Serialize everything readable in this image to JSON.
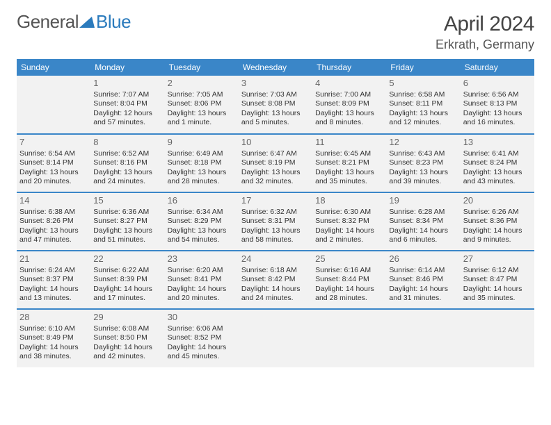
{
  "brand": {
    "part1": "General",
    "part2": "Blue"
  },
  "title": "April 2024",
  "subtitle": "Erkrath, Germany",
  "colors": {
    "headerBg": "#3a86c8",
    "rowBorder": "#3a86c8",
    "cellBg": "#f2f2f2",
    "titleColor": "#444"
  },
  "dayNames": [
    "Sunday",
    "Monday",
    "Tuesday",
    "Wednesday",
    "Thursday",
    "Friday",
    "Saturday"
  ],
  "weeks": [
    [
      null,
      {
        "n": "1",
        "sr": "7:07 AM",
        "ss": "8:04 PM",
        "dl": "12 hours and 57 minutes."
      },
      {
        "n": "2",
        "sr": "7:05 AM",
        "ss": "8:06 PM",
        "dl": "13 hours and 1 minute."
      },
      {
        "n": "3",
        "sr": "7:03 AM",
        "ss": "8:08 PM",
        "dl": "13 hours and 5 minutes."
      },
      {
        "n": "4",
        "sr": "7:00 AM",
        "ss": "8:09 PM",
        "dl": "13 hours and 8 minutes."
      },
      {
        "n": "5",
        "sr": "6:58 AM",
        "ss": "8:11 PM",
        "dl": "13 hours and 12 minutes."
      },
      {
        "n": "6",
        "sr": "6:56 AM",
        "ss": "8:13 PM",
        "dl": "13 hours and 16 minutes."
      }
    ],
    [
      {
        "n": "7",
        "sr": "6:54 AM",
        "ss": "8:14 PM",
        "dl": "13 hours and 20 minutes."
      },
      {
        "n": "8",
        "sr": "6:52 AM",
        "ss": "8:16 PM",
        "dl": "13 hours and 24 minutes."
      },
      {
        "n": "9",
        "sr": "6:49 AM",
        "ss": "8:18 PM",
        "dl": "13 hours and 28 minutes."
      },
      {
        "n": "10",
        "sr": "6:47 AM",
        "ss": "8:19 PM",
        "dl": "13 hours and 32 minutes."
      },
      {
        "n": "11",
        "sr": "6:45 AM",
        "ss": "8:21 PM",
        "dl": "13 hours and 35 minutes."
      },
      {
        "n": "12",
        "sr": "6:43 AM",
        "ss": "8:23 PM",
        "dl": "13 hours and 39 minutes."
      },
      {
        "n": "13",
        "sr": "6:41 AM",
        "ss": "8:24 PM",
        "dl": "13 hours and 43 minutes."
      }
    ],
    [
      {
        "n": "14",
        "sr": "6:38 AM",
        "ss": "8:26 PM",
        "dl": "13 hours and 47 minutes."
      },
      {
        "n": "15",
        "sr": "6:36 AM",
        "ss": "8:27 PM",
        "dl": "13 hours and 51 minutes."
      },
      {
        "n": "16",
        "sr": "6:34 AM",
        "ss": "8:29 PM",
        "dl": "13 hours and 54 minutes."
      },
      {
        "n": "17",
        "sr": "6:32 AM",
        "ss": "8:31 PM",
        "dl": "13 hours and 58 minutes."
      },
      {
        "n": "18",
        "sr": "6:30 AM",
        "ss": "8:32 PM",
        "dl": "14 hours and 2 minutes."
      },
      {
        "n": "19",
        "sr": "6:28 AM",
        "ss": "8:34 PM",
        "dl": "14 hours and 6 minutes."
      },
      {
        "n": "20",
        "sr": "6:26 AM",
        "ss": "8:36 PM",
        "dl": "14 hours and 9 minutes."
      }
    ],
    [
      {
        "n": "21",
        "sr": "6:24 AM",
        "ss": "8:37 PM",
        "dl": "14 hours and 13 minutes."
      },
      {
        "n": "22",
        "sr": "6:22 AM",
        "ss": "8:39 PM",
        "dl": "14 hours and 17 minutes."
      },
      {
        "n": "23",
        "sr": "6:20 AM",
        "ss": "8:41 PM",
        "dl": "14 hours and 20 minutes."
      },
      {
        "n": "24",
        "sr": "6:18 AM",
        "ss": "8:42 PM",
        "dl": "14 hours and 24 minutes."
      },
      {
        "n": "25",
        "sr": "6:16 AM",
        "ss": "8:44 PM",
        "dl": "14 hours and 28 minutes."
      },
      {
        "n": "26",
        "sr": "6:14 AM",
        "ss": "8:46 PM",
        "dl": "14 hours and 31 minutes."
      },
      {
        "n": "27",
        "sr": "6:12 AM",
        "ss": "8:47 PM",
        "dl": "14 hours and 35 minutes."
      }
    ],
    [
      {
        "n": "28",
        "sr": "6:10 AM",
        "ss": "8:49 PM",
        "dl": "14 hours and 38 minutes."
      },
      {
        "n": "29",
        "sr": "6:08 AM",
        "ss": "8:50 PM",
        "dl": "14 hours and 42 minutes."
      },
      {
        "n": "30",
        "sr": "6:06 AM",
        "ss": "8:52 PM",
        "dl": "14 hours and 45 minutes."
      },
      null,
      null,
      null,
      null
    ]
  ],
  "labels": {
    "sunrise": "Sunrise:",
    "sunset": "Sunset:",
    "daylight": "Daylight:"
  }
}
